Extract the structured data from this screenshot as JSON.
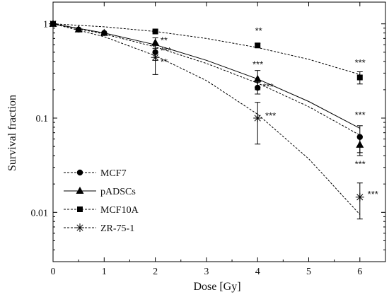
{
  "chart_data": {
    "type": "scatter",
    "xlabel": "Dose [Gy]",
    "ylabel": "Survival fraction",
    "xlim": [
      0,
      6.5
    ],
    "ylim": [
      0.003,
      1.7
    ],
    "yscale": "log",
    "xticks": [
      0,
      1,
      2,
      3,
      4,
      5,
      6
    ],
    "yticks": [
      0.01,
      0.1,
      1
    ],
    "ytick_labels": [
      "0.01",
      "0.1",
      "1"
    ],
    "grid": false,
    "legend_position": "bottom-left",
    "series": [
      {
        "name": "MCF7",
        "marker": "circle",
        "line_style": "dashed",
        "points": [
          {
            "x": 0,
            "y": 1.0
          },
          {
            "x": 0.5,
            "y": 0.87
          },
          {
            "x": 1,
            "y": 0.8
          },
          {
            "x": 2,
            "y": 0.5,
            "err": 0.09
          },
          {
            "x": 4,
            "y": 0.21,
            "err": 0.03
          },
          {
            "x": 6,
            "y": 0.063,
            "err": 0.02
          }
        ],
        "fit": [
          {
            "x": 0,
            "y": 1.0
          },
          {
            "x": 1,
            "y": 0.78
          },
          {
            "x": 2,
            "y": 0.57
          },
          {
            "x": 3,
            "y": 0.38
          },
          {
            "x": 4,
            "y": 0.235
          },
          {
            "x": 5,
            "y": 0.132
          },
          {
            "x": 6,
            "y": 0.066
          }
        ]
      },
      {
        "name": "pADSCs",
        "marker": "triangle",
        "line_style": "solid",
        "points": [
          {
            "x": 0,
            "y": 1.0
          },
          {
            "x": 0.5,
            "y": 0.87
          },
          {
            "x": 1,
            "y": 0.8
          },
          {
            "x": 2,
            "y": 0.63,
            "err": 0.08
          },
          {
            "x": 4,
            "y": 0.26,
            "err": 0.06
          },
          {
            "x": 6,
            "y": 0.052,
            "err": 0.012
          }
        ],
        "fit": [
          {
            "x": 0,
            "y": 1.0
          },
          {
            "x": 1,
            "y": 0.8
          },
          {
            "x": 2,
            "y": 0.6
          },
          {
            "x": 3,
            "y": 0.41
          },
          {
            "x": 4,
            "y": 0.26
          },
          {
            "x": 5,
            "y": 0.15
          },
          {
            "x": 6,
            "y": 0.078
          }
        ]
      },
      {
        "name": "MCF10A",
        "marker": "square",
        "line_style": "dashed",
        "points": [
          {
            "x": 0,
            "y": 1.0
          },
          {
            "x": 2,
            "y": 0.83,
            "err": 0.02
          },
          {
            "x": 4,
            "y": 0.59,
            "err": 0.03
          },
          {
            "x": 6,
            "y": 0.27,
            "err": 0.04
          }
        ],
        "fit": [
          {
            "x": 0,
            "y": 1.0
          },
          {
            "x": 1,
            "y": 0.93
          },
          {
            "x": 2,
            "y": 0.83
          },
          {
            "x": 3,
            "y": 0.7
          },
          {
            "x": 4,
            "y": 0.56
          },
          {
            "x": 5,
            "y": 0.42
          },
          {
            "x": 6,
            "y": 0.29
          }
        ]
      },
      {
        "name": "ZR-75-1",
        "marker": "asterisk",
        "line_style": "dashed",
        "points": [
          {
            "x": 0,
            "y": 1.0
          },
          {
            "x": 2,
            "y": 0.44,
            "err": 0.15
          },
          {
            "x": 4,
            "y": 0.1,
            "err": 0.047
          },
          {
            "x": 6,
            "y": 0.0145,
            "err": 0.006
          }
        ],
        "fit": [
          {
            "x": 0,
            "y": 1.0
          },
          {
            "x": 1,
            "y": 0.73
          },
          {
            "x": 2,
            "y": 0.46
          },
          {
            "x": 3,
            "y": 0.25
          },
          {
            "x": 4,
            "y": 0.11
          },
          {
            "x": 5,
            "y": 0.037
          },
          {
            "x": 6,
            "y": 0.0095
          }
        ]
      }
    ],
    "annotations": [
      {
        "text": "**",
        "x": 2.1,
        "y": 0.62
      },
      {
        "text": "***",
        "x": 2.1,
        "y": 0.48
      },
      {
        "text": "**",
        "x": 2.1,
        "y": 0.365
      },
      {
        "text": "**",
        "x": 3.95,
        "y": 0.78
      },
      {
        "text": "***",
        "x": 3.9,
        "y": 0.345
      },
      {
        "text": "***",
        "x": 4.1,
        "y": 0.2
      },
      {
        "text": "***",
        "x": 4.15,
        "y": 0.098
      },
      {
        "text": "***",
        "x": 5.9,
        "y": 0.36
      },
      {
        "text": "***",
        "x": 5.9,
        "y": 0.1
      },
      {
        "text": "***",
        "x": 5.9,
        "y": 0.03
      },
      {
        "text": "***",
        "x": 6.15,
        "y": 0.0145
      }
    ]
  }
}
